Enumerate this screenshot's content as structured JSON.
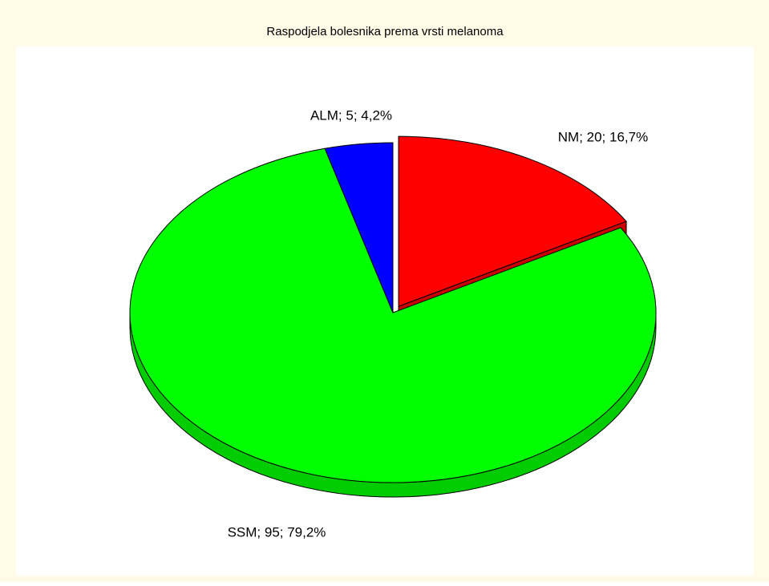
{
  "chart_data": {
    "type": "pie",
    "title": "Raspodjela bolesnika prema vrsti melanoma",
    "values": [
      20,
      95,
      5
    ],
    "value_labels": [
      "NM; 20; 16,7%",
      "SSM; 95; 79,2%",
      "ALM; 5; 4,2%"
    ],
    "colors": [
      "#ff0000",
      "#00ff00",
      "#0000ff"
    ],
    "explode_index": 0
  }
}
